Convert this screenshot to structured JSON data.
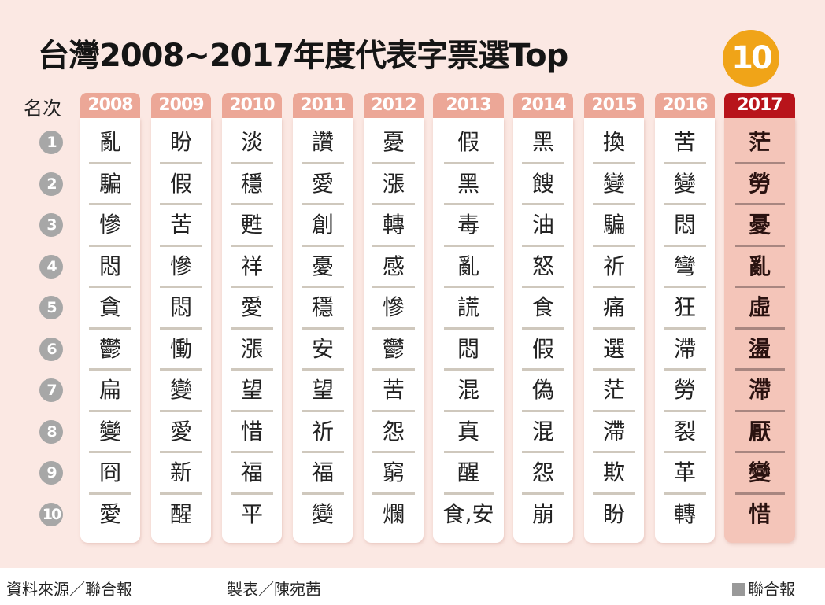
{
  "title": "台灣2008~2017年度代表字票選Top",
  "title_badge": "10",
  "rank_header": "名次",
  "colors": {
    "background": "#fbe8e3",
    "year_header": "#eca797",
    "highlight_header": "#b8141b",
    "highlight_column": "#f4c5b9",
    "badge": "#f0a418",
    "rank_circle": "#a7a7a7"
  },
  "chart_data": {
    "type": "table",
    "title": "台灣2008~2017年度代表字票選Top 10",
    "ranks": [
      "1",
      "2",
      "3",
      "4",
      "5",
      "6",
      "7",
      "8",
      "9",
      "10"
    ],
    "highlight_year": "2017",
    "columns": [
      {
        "year": "2008",
        "words": [
          "亂",
          "騙",
          "慘",
          "悶",
          "貪",
          "鬱",
          "扁",
          "變",
          "冏",
          "愛"
        ]
      },
      {
        "year": "2009",
        "words": [
          "盼",
          "假",
          "苦",
          "慘",
          "悶",
          "慟",
          "變",
          "愛",
          "新",
          "醒"
        ]
      },
      {
        "year": "2010",
        "words": [
          "淡",
          "穩",
          "甦",
          "祥",
          "愛",
          "漲",
          "望",
          "惜",
          "福",
          "平"
        ]
      },
      {
        "year": "2011",
        "words": [
          "讚",
          "愛",
          "創",
          "憂",
          "穩",
          "安",
          "望",
          "祈",
          "福",
          "變"
        ]
      },
      {
        "year": "2012",
        "words": [
          "憂",
          "漲",
          "轉",
          "感",
          "慘",
          "鬱",
          "苦",
          "怨",
          "窮",
          "爛"
        ]
      },
      {
        "year": "2013",
        "words": [
          "假",
          "黑",
          "毒",
          "亂",
          "謊",
          "悶",
          "混",
          "真",
          "醒",
          "食,安"
        ]
      },
      {
        "year": "2014",
        "words": [
          "黑",
          "餿",
          "油",
          "怒",
          "食",
          "假",
          "偽",
          "混",
          "怨",
          "崩"
        ]
      },
      {
        "year": "2015",
        "words": [
          "換",
          "變",
          "騙",
          "祈",
          "痛",
          "選",
          "茫",
          "滯",
          "欺",
          "盼"
        ]
      },
      {
        "year": "2016",
        "words": [
          "苦",
          "變",
          "悶",
          "彎",
          "狂",
          "滯",
          "勞",
          "裂",
          "革",
          "轉"
        ]
      },
      {
        "year": "2017",
        "words": [
          "茫",
          "勞",
          "憂",
          "亂",
          "虛",
          "盪",
          "滯",
          "厭",
          "變",
          "惜"
        ]
      }
    ]
  },
  "footer": {
    "source": "資料來源／聯合報",
    "maker": "製表／陳宛茜",
    "brand": "聯合報"
  }
}
